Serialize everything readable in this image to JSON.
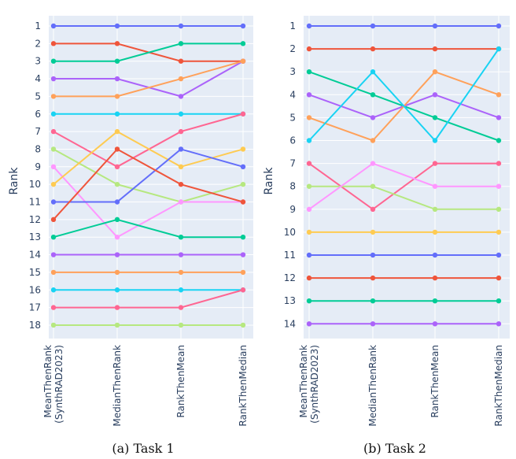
{
  "chart_data": [
    {
      "type": "line",
      "caption": "(a) Task 1",
      "ylabel": "Rank",
      "x": [
        "MeanThenRank\n(SynthRAD2023)",
        "MedianThenRank",
        "RankThenMean",
        "RankThenMedian"
      ],
      "ranks": [
        "1",
        "2",
        "3",
        "4",
        "5",
        "6",
        "7",
        "8",
        "9",
        "10",
        "11",
        "12",
        "13",
        "14",
        "15",
        "16",
        "17",
        "18"
      ],
      "y_reversed": true,
      "ylim": [
        1,
        18
      ],
      "grid": true,
      "series": [
        {
          "color": "#636efa",
          "values": [
            1,
            1,
            1,
            1
          ]
        },
        {
          "color": "#ef553b",
          "values": [
            2,
            2,
            3,
            3
          ]
        },
        {
          "color": "#00cc96",
          "values": [
            3,
            3,
            2,
            2
          ]
        },
        {
          "color": "#ab63fa",
          "values": [
            4,
            4,
            5,
            3
          ]
        },
        {
          "color": "#ffa15a",
          "values": [
            5,
            5,
            4,
            3
          ]
        },
        {
          "color": "#19d3f3",
          "values": [
            6,
            6,
            6,
            6
          ]
        },
        {
          "color": "#ff6692",
          "values": [
            7,
            9,
            7,
            6
          ]
        },
        {
          "color": "#b6e880",
          "values": [
            8,
            10,
            11,
            10
          ]
        },
        {
          "color": "#ff97ff",
          "values": [
            9,
            13,
            11,
            11
          ]
        },
        {
          "color": "#fecb52",
          "values": [
            10,
            7,
            9,
            8
          ]
        },
        {
          "color": "#636efa",
          "values": [
            11,
            11,
            8,
            9
          ]
        },
        {
          "color": "#ef553b",
          "values": [
            12,
            8,
            10,
            11
          ]
        },
        {
          "color": "#00cc96",
          "values": [
            13,
            12,
            13,
            13
          ]
        },
        {
          "color": "#ab63fa",
          "values": [
            14,
            14,
            14,
            14
          ]
        },
        {
          "color": "#ffa15a",
          "values": [
            15,
            15,
            15,
            15
          ]
        },
        {
          "color": "#19d3f3",
          "values": [
            16,
            16,
            16,
            16
          ]
        },
        {
          "color": "#ff6692",
          "values": [
            17,
            17,
            17,
            16
          ]
        },
        {
          "color": "#b6e880",
          "values": [
            18,
            18,
            18,
            18
          ]
        }
      ]
    },
    {
      "type": "line",
      "caption": "(b) Task 2",
      "ylabel": "Rank",
      "x": [
        "MeanThenRank\n(SynthRAD2023)",
        "MedianThenRank",
        "RankThenMean",
        "RankThenMedian"
      ],
      "ranks": [
        "1",
        "2",
        "3",
        "4",
        "5",
        "6",
        "7",
        "8",
        "9",
        "10",
        "11",
        "12",
        "13",
        "14"
      ],
      "y_reversed": true,
      "ylim": [
        1,
        14
      ],
      "grid": true,
      "series": [
        {
          "color": "#636efa",
          "values": [
            1,
            1,
            1,
            1
          ]
        },
        {
          "color": "#ef553b",
          "values": [
            2,
            2,
            2,
            2
          ]
        },
        {
          "color": "#00cc96",
          "values": [
            3,
            4,
            5,
            6
          ]
        },
        {
          "color": "#ab63fa",
          "values": [
            4,
            5,
            4,
            5
          ]
        },
        {
          "color": "#ffa15a",
          "values": [
            5,
            6,
            3,
            4
          ]
        },
        {
          "color": "#19d3f3",
          "values": [
            6,
            3,
            6,
            2
          ]
        },
        {
          "color": "#ff6692",
          "values": [
            7,
            9,
            7,
            7
          ]
        },
        {
          "color": "#b6e880",
          "values": [
            8,
            8,
            9,
            9
          ]
        },
        {
          "color": "#ff97ff",
          "values": [
            9,
            7,
            8,
            8
          ]
        },
        {
          "color": "#fecb52",
          "values": [
            10,
            10,
            10,
            10
          ]
        },
        {
          "color": "#636efa",
          "values": [
            11,
            11,
            11,
            11
          ]
        },
        {
          "color": "#ef553b",
          "values": [
            12,
            12,
            12,
            12
          ]
        },
        {
          "color": "#00cc96",
          "values": [
            13,
            13,
            13,
            13
          ]
        },
        {
          "color": "#ab63fa",
          "values": [
            14,
            14,
            14,
            14
          ]
        }
      ]
    }
  ]
}
